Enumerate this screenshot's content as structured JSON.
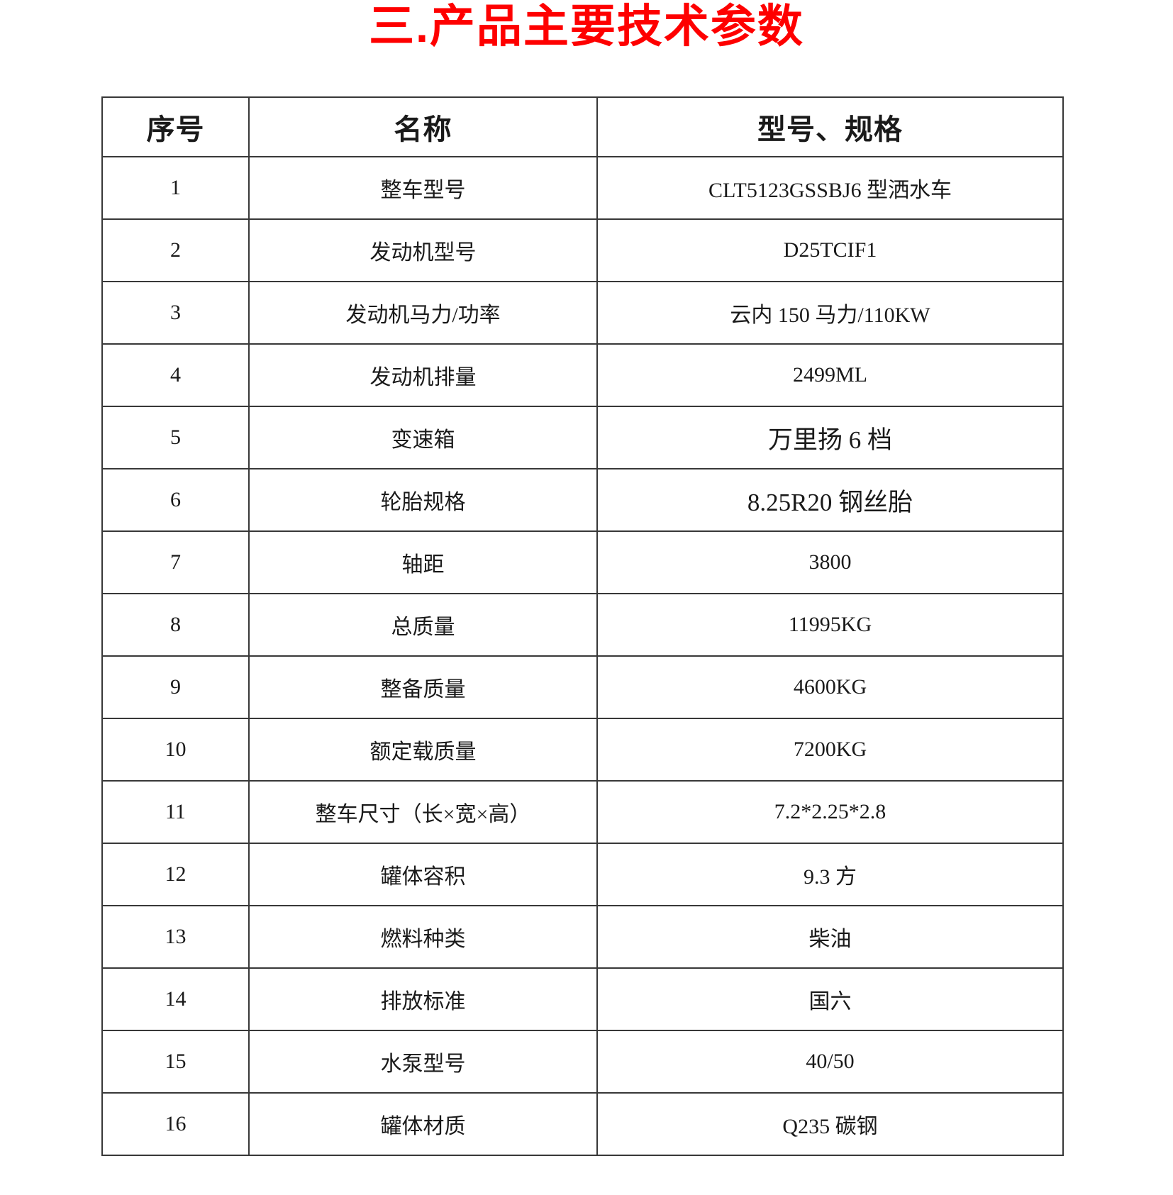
{
  "title": {
    "text": "三.产品主要技术参数",
    "color": "#fe0000"
  },
  "table": {
    "headers": [
      "序号",
      "名称",
      "型号、规格"
    ],
    "rows": [
      {
        "no": "1",
        "name": "整车型号",
        "spec": "CLT5123GSSBJ6 型洒水车"
      },
      {
        "no": "2",
        "name": "发动机型号",
        "spec": "D25TCIF1"
      },
      {
        "no": "3",
        "name": "发动机马力/功率",
        "spec": "云内 150 马力/110KW"
      },
      {
        "no": "4",
        "name": "发动机排量",
        "spec": "2499ML"
      },
      {
        "no": "5",
        "name": "变速箱",
        "spec": "万里扬 6 档"
      },
      {
        "no": "6",
        "name": "轮胎规格",
        "spec": "8.25R20 钢丝胎"
      },
      {
        "no": "7",
        "name": "轴距",
        "spec": "3800"
      },
      {
        "no": "8",
        "name": "总质量",
        "spec": "11995KG"
      },
      {
        "no": "9",
        "name": "整备质量",
        "spec": "4600KG"
      },
      {
        "no": "10",
        "name": "额定载质量",
        "spec": "7200KG"
      },
      {
        "no": "11",
        "name": "整车尺寸（长×宽×高）",
        "spec": "7.2*2.25*2.8"
      },
      {
        "no": "12",
        "name": "罐体容积",
        "spec": "9.3 方"
      },
      {
        "no": "13",
        "name": "燃料种类",
        "spec": "柴油"
      },
      {
        "no": "14",
        "name": "排放标准",
        "spec": "国六"
      },
      {
        "no": "15",
        "name": "水泵型号",
        "spec": "40/50"
      },
      {
        "no": "16",
        "name": "罐体材质",
        "spec": "Q235 碳钢"
      }
    ]
  },
  "colors": {
    "title_red": "#fe0000",
    "border": "#383838",
    "text": "#1a1a1a",
    "background": "#ffffff"
  }
}
